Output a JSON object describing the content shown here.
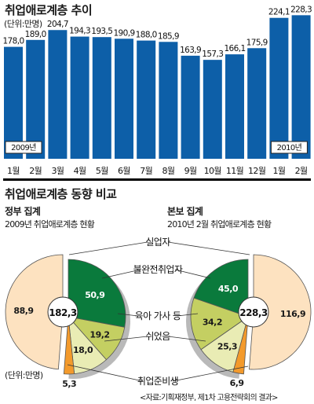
{
  "colors": {
    "bar": "#0d5fa8",
    "bar_label_bg": "#ffffff",
    "rule": "#000000",
    "pie_unemployed": "#fde2c0",
    "pie_underemployed": "#0a7a3c",
    "pie_housework": "#c4cf62",
    "pie_rest": "#e9ecb4",
    "pie_jobprep": "#f39a2c",
    "pie_shadow": "#b9b9b9",
    "pie_edge": "#555555"
  },
  "section1": {
    "title": "취업애로계층 추이",
    "unit": "(단위:만명)"
  },
  "section2": {
    "title": "취업애로계층 동향 비교",
    "left_head": "정부 집계",
    "left_desc": "2009년 취업애로계층 현황",
    "right_head": "본보 집계",
    "right_desc": "2010년 2월 취업애로계층 현황",
    "unit": "(단위:만명)",
    "source": "<자료:기획재정부, 제1차 고용전략회의 결과>"
  },
  "chart_data": [
    {
      "type": "bar",
      "title": "취업애로계층 추이",
      "unit": "(단위:만명)",
      "categories": [
        "1월",
        "2월",
        "3월",
        "4월",
        "5월",
        "6월",
        "7월",
        "8월",
        "9월",
        "10월",
        "11월",
        "12월",
        "1월",
        "2월"
      ],
      "values": [
        178.0,
        189.0,
        204.7,
        194.3,
        193.5,
        190.9,
        188.0,
        185.9,
        163.9,
        157.3,
        166.1,
        175.9,
        224.1,
        228.3
      ],
      "value_labels": [
        "178,0",
        "189,0",
        "204,7",
        "194,3",
        "193,5",
        "190,9",
        "188,0",
        "185,9",
        "163,9",
        "157,3",
        "166,1",
        "175,9",
        "224,1",
        "228,3"
      ],
      "year_markers": [
        {
          "index": 0,
          "label": "2009년"
        },
        {
          "index": 12,
          "label": "2010년"
        }
      ],
      "ylim": [
        0,
        240
      ],
      "grid": false
    },
    {
      "type": "pie",
      "title": "2009년 취업애로계층 현황",
      "total_label": "182,3",
      "slices": [
        {
          "name": "실업자",
          "value": 88.9,
          "label": "88,9"
        },
        {
          "name": "불완전취업자",
          "value": 50.9,
          "label": "50,9"
        },
        {
          "name": "육아 가사 등",
          "value": 19.2,
          "label": "19,2"
        },
        {
          "name": "쉬었음",
          "value": 18.0,
          "label": "18,0"
        },
        {
          "name": "취업준비생",
          "value": 5.3,
          "label": "5,3"
        }
      ]
    },
    {
      "type": "pie",
      "title": "2010년 2월 취업애로계층 현황",
      "total_label": "228,3",
      "slices": [
        {
          "name": "실업자",
          "value": 116.9,
          "label": "116,9"
        },
        {
          "name": "불완전취업자",
          "value": 45.0,
          "label": "45,0"
        },
        {
          "name": "육아 가사 등",
          "value": 34.2,
          "label": "34,2"
        },
        {
          "name": "쉬었음",
          "value": 25.3,
          "label": "25,3"
        },
        {
          "name": "취업준비생",
          "value": 6.9,
          "label": "6,9"
        }
      ]
    }
  ],
  "category_labels": [
    "실업자",
    "불완전취업자",
    "육아 가사 등",
    "쉬었음",
    "취업준비생"
  ]
}
